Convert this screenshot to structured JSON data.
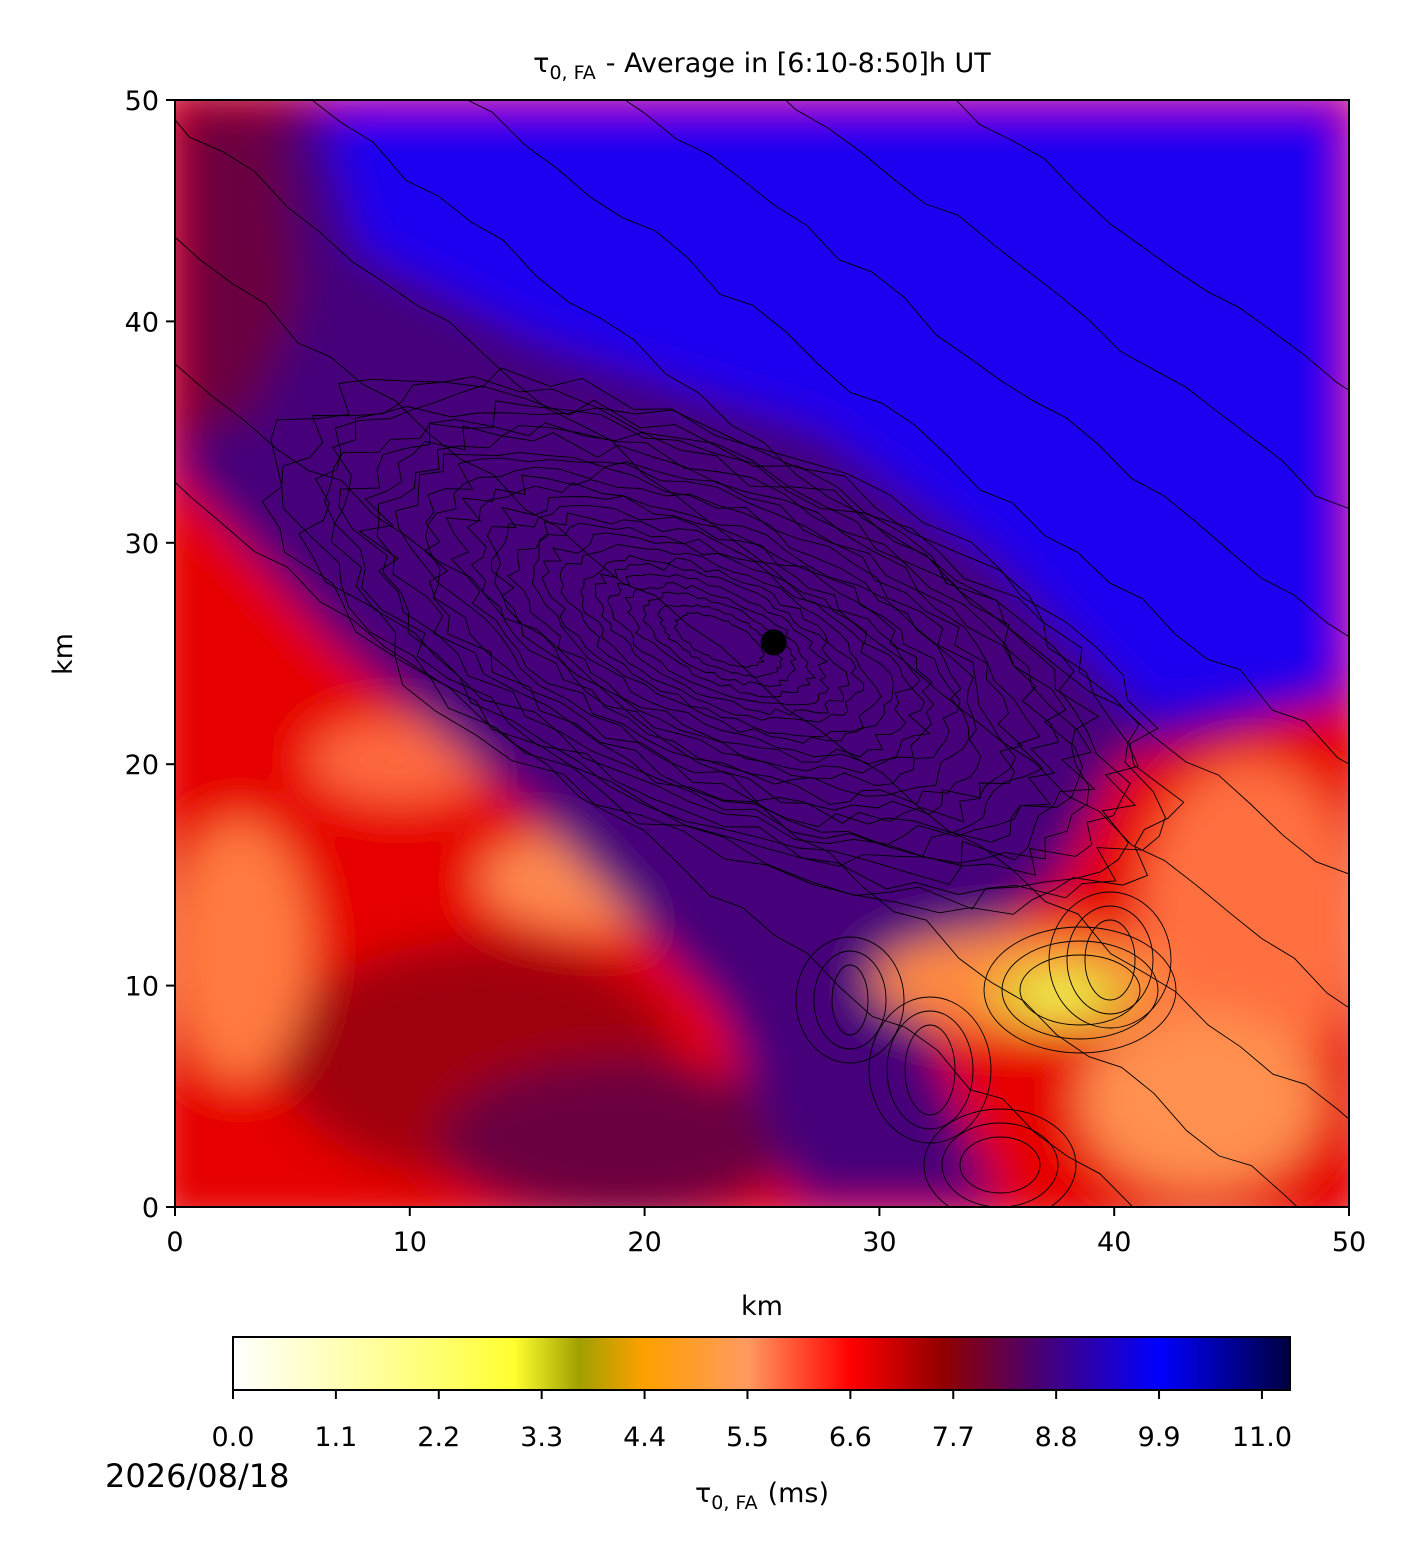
{
  "chart_data": {
    "type": "heatmap",
    "title_symbol": "τ",
    "title_subscript": "0, FA",
    "title_text": "- Average in [6:10-8:50]h UT",
    "xlabel": "km",
    "ylabel": "km",
    "xlim": [
      0,
      50
    ],
    "xticks": [
      0,
      10,
      20,
      30,
      40,
      50
    ],
    "ylim": [
      0,
      50
    ],
    "yticks": [
      0,
      10,
      20,
      30,
      40,
      50
    ],
    "marker": {
      "x": 25.5,
      "y": 25.5,
      "color": "#000000"
    },
    "colorbar": {
      "clim": [
        0,
        11.3
      ],
      "ticks": [
        {
          "value": 0,
          "label": "0.0"
        },
        1.1,
        2.2,
        3.3,
        4.4,
        5.5,
        6.6,
        7.7,
        8.8,
        9.9,
        {
          "value": 11,
          "label": "11.0"
        }
      ],
      "label_symbol": "τ",
      "label_subscript": "0, FA",
      "label_text": "(ms)",
      "colormap": [
        {
          "value": 0,
          "color": "#ffffff"
        },
        {
          "value": 2.2,
          "color": "#ffff70"
        },
        {
          "value": 3.0,
          "color": "#ffff30"
        },
        {
          "value": 3.7,
          "color": "#a0a000"
        },
        {
          "value": 4.4,
          "color": "#ffa000"
        },
        {
          "value": 5.5,
          "color": "#ff9a60"
        },
        {
          "value": 6.6,
          "color": "#ff0000"
        },
        {
          "value": 7.6,
          "color": "#900000"
        },
        {
          "value": 8.6,
          "color": "#4a0070"
        },
        {
          "value": 9.9,
          "color": "#0000ff"
        },
        {
          "value": 11.3,
          "color": "#000040"
        }
      ]
    },
    "date": "2026/08/18"
  }
}
